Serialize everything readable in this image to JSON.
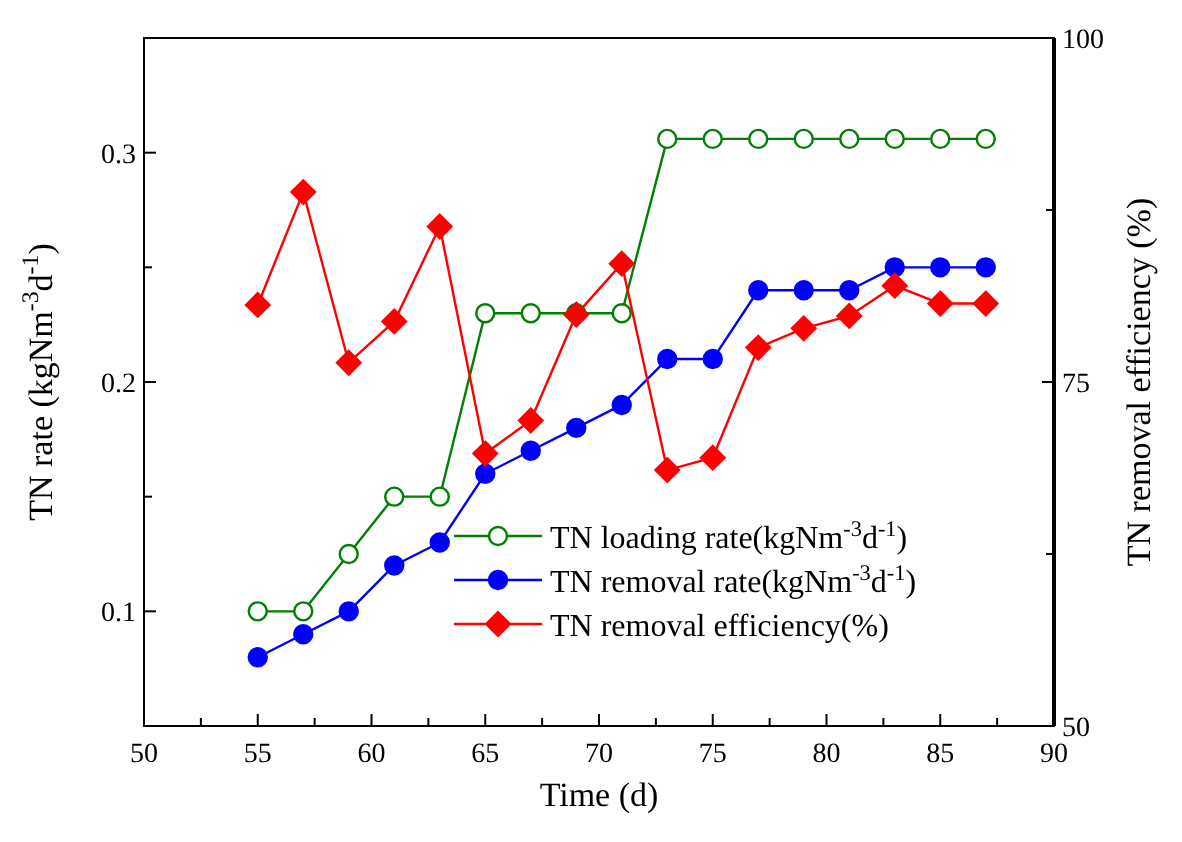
{
  "chart_data": {
    "type": "line",
    "xlabel": "Time (d)",
    "ylabel": "TN rate (kgNm$^{-3}$d$^{-1}$)",
    "y2label": "TN removal efficiency (%)",
    "x": [
      55,
      57,
      59,
      61,
      63,
      65,
      67,
      69,
      71,
      73,
      75,
      77,
      79,
      81,
      83,
      85,
      87
    ],
    "xlim": [
      50,
      90
    ],
    "xticks": [
      50,
      {
        "value": 52.5,
        "label": null
      },
      55,
      {
        "value": 57.5,
        "label": null
      },
      60,
      {
        "value": 62.5,
        "label": null
      },
      65,
      {
        "value": 67.5,
        "label": null
      },
      70,
      {
        "value": 72.5,
        "label": null
      },
      75,
      {
        "value": 77.5,
        "label": null
      },
      80,
      {
        "value": 82.5,
        "label": null
      },
      85,
      {
        "value": 87.5,
        "label": null
      },
      90
    ],
    "ylim": [
      0.05,
      0.35
    ],
    "yticks": [
      {
        "value": 0.1,
        "label": "0.1"
      },
      {
        "value": 0.15,
        "label": null
      },
      {
        "value": 0.2,
        "label": "0.2"
      },
      {
        "value": 0.25,
        "label": null
      },
      {
        "value": 0.3,
        "label": "0.3"
      }
    ],
    "y2lim": [
      50,
      100
    ],
    "y2ticks": [
      50,
      {
        "value": 62.5,
        "label": null
      },
      75,
      {
        "value": 87.5,
        "label": null
      },
      100
    ],
    "grid": false,
    "legend": "bottom right",
    "series": [
      {
        "name": "TN loading rate(kgNm$^{-3}$d$^{-1}$)",
        "color": "#008000",
        "marker": "circle",
        "values": [
          0.1,
          0.1,
          0.125,
          0.15,
          0.15,
          0.23,
          0.23,
          0.23,
          0.23,
          0.306,
          0.306,
          0.306,
          0.306,
          0.306,
          0.306,
          0.306,
          0.306
        ]
      },
      {
        "name": "TN removal rate(kgNm$^{-3}$d$^{-1}$)",
        "color": "#0000ff",
        "marker": "circle",
        "values": [
          0.08,
          0.09,
          0.1,
          0.12,
          0.13,
          0.16,
          0.17,
          0.18,
          0.19,
          0.21,
          0.21,
          0.24,
          0.24,
          0.24,
          0.25,
          0.25,
          0.25
        ]
      },
      {
        "name": "TN removal efficiency(%)",
        "color": "#ff0000",
        "marker": "diamond",
        "axis": "y2",
        "values": [
          80.6,
          88.8,
          76.4,
          79.4,
          86.3,
          69.8,
          72.2,
          79.9,
          83.6,
          68.6,
          69.5,
          77.5,
          78.9,
          79.8,
          82.0,
          80.7,
          80.7
        ]
      }
    ]
  }
}
